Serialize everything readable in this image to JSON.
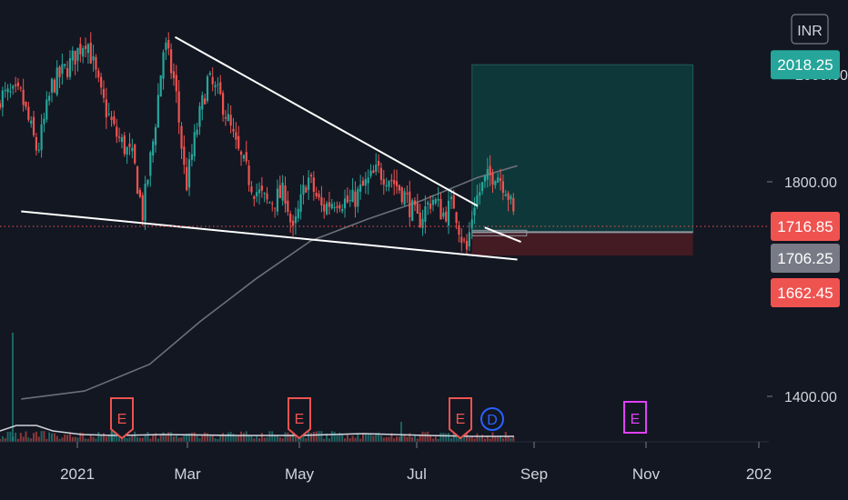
{
  "currency_label": "INR",
  "colors": {
    "background": "#131722",
    "up": "#26a69a",
    "down": "#ef5350",
    "ma_line": "#6b6f78",
    "trendline": "#ffffff",
    "target_zone": "#0e3d3d",
    "stop_zone": "#4a1c24",
    "earnings": "#ef5350",
    "dividend": "#2962ff",
    "future_earnings": "#e040fb",
    "gray_badge": "#787b86",
    "grid": "#2a2e39"
  },
  "price_axis": {
    "ticks": [
      "1800.00",
      "1400.00"
    ],
    "hidden_tick": "2000.00"
  },
  "price_badges": [
    {
      "label": "2018.25",
      "kind": "target",
      "color": "#26a69a"
    },
    {
      "label": "1716.85",
      "kind": "last",
      "color": "#ef5350"
    },
    {
      "label": "1706.25",
      "kind": "entry",
      "color": "#787b86"
    },
    {
      "label": "1662.45",
      "kind": "stop",
      "color": "#ef5350"
    }
  ],
  "time_axis": {
    "labels": [
      "2021",
      "Mar",
      "May",
      "Jul",
      "Sep",
      "Nov",
      "202"
    ]
  },
  "events": [
    {
      "letter": "E",
      "kind": "earnings"
    },
    {
      "letter": "E",
      "kind": "earnings"
    },
    {
      "letter": "E",
      "kind": "earnings"
    },
    {
      "letter": "D",
      "kind": "dividend"
    },
    {
      "letter": "E",
      "kind": "future-earnings"
    }
  ],
  "chart_data": {
    "type": "candlestick",
    "ylim": [
      1300,
      2100
    ],
    "y_axis_ticks": [
      1400,
      1800
    ],
    "x_axis_labels": [
      "2021",
      "Mar",
      "May",
      "Jul",
      "Sep",
      "Nov",
      "202"
    ],
    "series": [
      {
        "kind": "price-path",
        "points": [
          [
            "2020-12-01",
            1960
          ],
          [
            "2020-12-10",
            1855
          ],
          [
            "2020-12-18",
            1980
          ],
          [
            "2020-12-28",
            2020
          ],
          [
            "2021-01-06",
            2070
          ],
          [
            "2021-01-14",
            1960
          ],
          [
            "2021-01-22",
            1890
          ],
          [
            "2021-02-01",
            1840
          ],
          [
            "2021-02-06",
            1740
          ],
          [
            "2021-02-12",
            1880
          ],
          [
            "2021-02-18",
            2060
          ],
          [
            "2021-02-24",
            1980
          ],
          [
            "2021-03-02",
            1790
          ],
          [
            "2021-03-08",
            1900
          ],
          [
            "2021-03-14",
            1990
          ],
          [
            "2021-03-22",
            1950
          ],
          [
            "2021-03-30",
            1860
          ],
          [
            "2021-04-08",
            1790
          ],
          [
            "2021-04-16",
            1760
          ],
          [
            "2021-04-26",
            1780
          ],
          [
            "2021-04-30",
            1700
          ],
          [
            "2021-05-08",
            1810
          ],
          [
            "2021-05-16",
            1750
          ],
          [
            "2021-05-24",
            1770
          ],
          [
            "2021-06-01",
            1760
          ],
          [
            "2021-06-08",
            1790
          ],
          [
            "2021-06-16",
            1820
          ],
          [
            "2021-06-22",
            1810
          ],
          [
            "2021-06-30",
            1780
          ],
          [
            "2021-07-08",
            1725
          ],
          [
            "2021-07-16",
            1770
          ],
          [
            "2021-07-22",
            1740
          ],
          [
            "2021-07-28",
            1760
          ],
          [
            "2021-08-01",
            1700
          ],
          [
            "2021-08-04",
            1670
          ],
          [
            "2021-08-08",
            1760
          ],
          [
            "2021-08-14",
            1800
          ],
          [
            "2021-08-20",
            1820
          ],
          [
            "2021-08-26",
            1790
          ],
          [
            "2021-08-31",
            1720
          ]
        ]
      },
      {
        "kind": "moving-average",
        "points": [
          [
            "2020-12-01",
            1395
          ],
          [
            "2021-01-05",
            1410
          ],
          [
            "2021-02-10",
            1460
          ],
          [
            "2021-03-10",
            1540
          ],
          [
            "2021-04-10",
            1620
          ],
          [
            "2021-05-10",
            1690
          ],
          [
            "2021-06-10",
            1730
          ],
          [
            "2021-07-10",
            1765
          ],
          [
            "2021-08-10",
            1808
          ],
          [
            "2021-09-01",
            1830
          ]
        ]
      }
    ],
    "trendlines": [
      [
        [
          "2021-02-24",
          2070
        ],
        [
          "2021-08-10",
          1755
        ]
      ],
      [
        [
          "2020-12-01",
          1745
        ],
        [
          "2021-09-01",
          1655
        ]
      ],
      [
        [
          "2021-08-14",
          1715
        ],
        [
          "2021-09-03",
          1688
        ]
      ]
    ],
    "position": {
      "target": 2018.25,
      "entry": 1706.25,
      "stop": 1662.45,
      "last": 1716.85
    }
  }
}
